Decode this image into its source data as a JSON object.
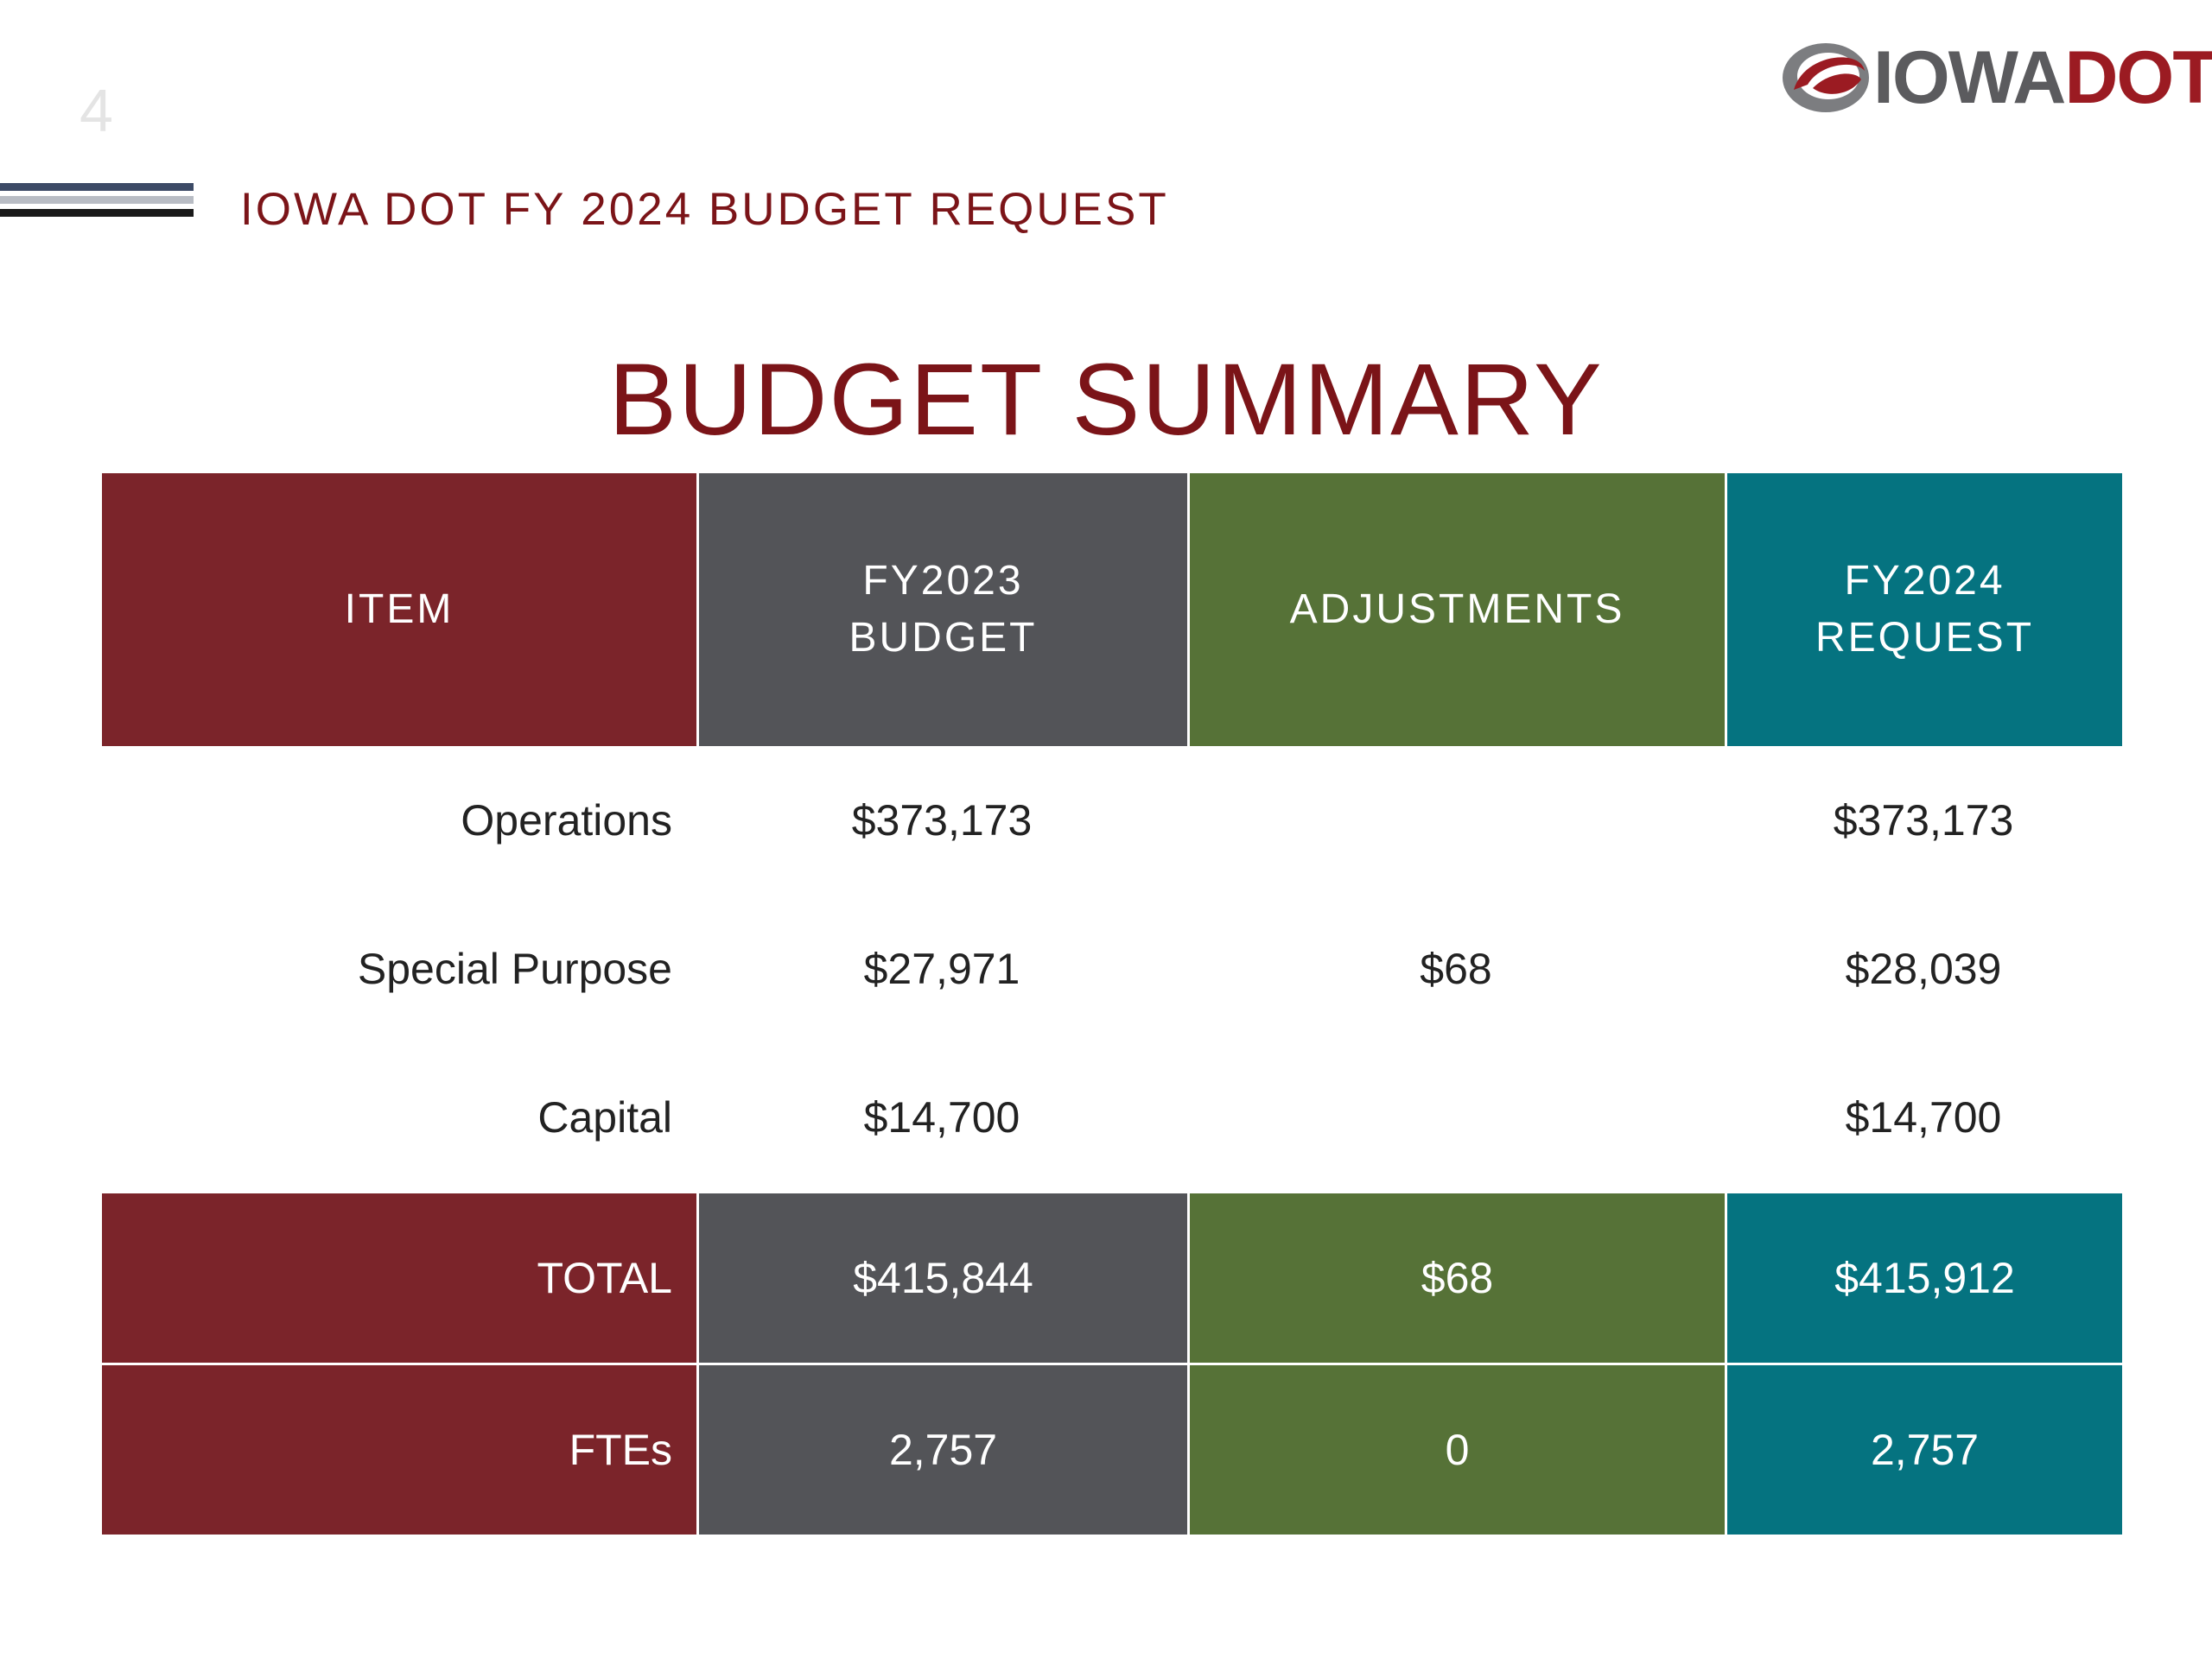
{
  "slide_number": "4",
  "header": {
    "title": "IOWA DOT FY 2024 BUDGET REQUEST",
    "logo": {
      "icon": "iowa-dot-swoosh-logo-icon",
      "text_a": "IOWA",
      "text_b": "DOT"
    },
    "lines_colors": [
      "#3c4a66",
      "#b8bcc4",
      "#1a1a1a"
    ]
  },
  "main_title": "BUDGET SUMMARY",
  "colors": {
    "red": "#7b242a",
    "gray": "#535458",
    "green": "#567237",
    "teal": "#057380",
    "title": "#7b1418"
  },
  "table": {
    "headers": [
      "ITEM",
      "FY2023\nBUDGET",
      "ADJUSTMENTS",
      "FY2024\nREQUEST"
    ],
    "rows": [
      [
        "Operations",
        "$373,173",
        "",
        "$373,173"
      ],
      [
        "Special Purpose",
        "$27,971",
        "$68",
        "$28,039"
      ],
      [
        "Capital",
        "$14,700",
        "",
        "$14,700"
      ]
    ],
    "total": [
      "TOTAL",
      "$415,844",
      "$68",
      "$415,912"
    ],
    "ftes": [
      "FTEs",
      "2,757",
      "0",
      "2,757"
    ]
  }
}
